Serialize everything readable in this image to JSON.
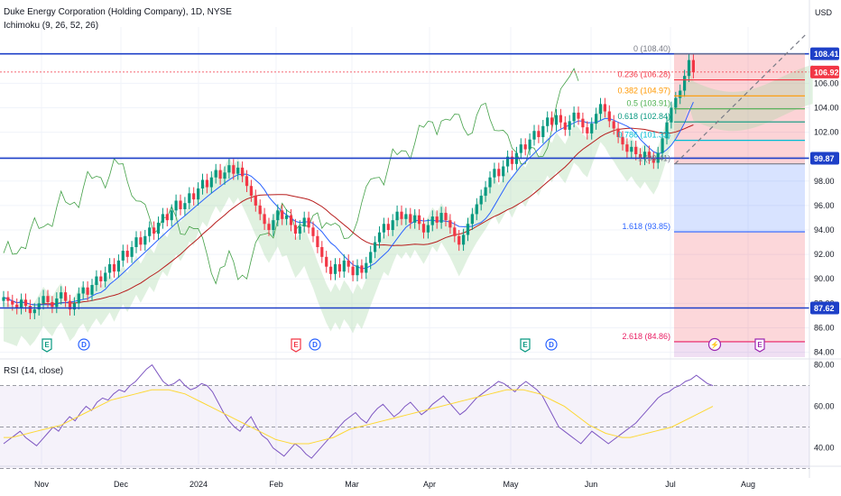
{
  "header": {
    "title": "Duke Energy Corporation (Holding Company), 1D, NYSE",
    "indicator": "Ichimoku (9, 26, 52, 26)",
    "currency": "USD"
  },
  "rsi": {
    "label": "RSI (14, close)",
    "ticks": [
      "80.00",
      "60.00",
      "40.00"
    ]
  },
  "colors": {
    "up": "#089981",
    "down": "#f23645",
    "tenkan": "#2962ff",
    "kijun": "#b71c1c",
    "lagging": "#43a047",
    "cloud_up": "#a5d6a7",
    "cloud_down": "#ef9a9a",
    "rsi": "#7e57c2",
    "rsi_ma": "#fdd835",
    "line_blue": "#1e40c8"
  },
  "chart_data": {
    "type": "candlestick",
    "price_axis": {
      "ylim": [
        83.6,
        110.6
      ],
      "ticks": [
        "106.00",
        "104.00",
        "102.00",
        "100.00",
        "98.00",
        "96.00",
        "94.00",
        "92.00",
        "90.00",
        "88.00",
        "86.00",
        "84.00"
      ],
      "labels": [
        {
          "value": 108.41,
          "text": "108.41",
          "color": "#1e40c8"
        },
        {
          "value": 106.92,
          "text": "106.92",
          "color": "#f23645"
        },
        {
          "value": 99.87,
          "text": "99.87",
          "color": "#1e40c8"
        },
        {
          "value": 87.62,
          "text": "87.62",
          "color": "#1e40c8"
        }
      ]
    },
    "time_axis": [
      "Nov",
      "Dec",
      "2024",
      "Feb",
      "Mar",
      "Apr",
      "May",
      "Jun",
      "Jul",
      "Aug"
    ],
    "horizontal_lines": [
      108.41,
      99.87,
      87.62
    ],
    "last_price": 106.92,
    "fibonacci": [
      {
        "ratio": "0",
        "value": "108.40",
        "label": "0 (108.40)",
        "price": 108.4,
        "color": "#787b86"
      },
      {
        "ratio": "0.236",
        "value": "106.28",
        "label": "0.236 (106.28)",
        "price": 106.28,
        "color": "#f23645"
      },
      {
        "ratio": "0.382",
        "value": "104.97",
        "label": "0.382 (104.97)",
        "price": 104.97,
        "color": "#ff9800"
      },
      {
        "ratio": "0.5",
        "value": "103.91",
        "label": "0.5 (103.91)",
        "price": 103.91,
        "color": "#4caf50"
      },
      {
        "ratio": "0.618",
        "value": "102.84",
        "label": "0.618 (102.84)",
        "price": 102.84,
        "color": "#089981"
      },
      {
        "ratio": "0.786",
        "value": "101.33",
        "label": "0.786 (101.33)",
        "price": 101.33,
        "color": "#00bcd4"
      },
      {
        "ratio": "1",
        "value": "99.41",
        "label": "1 (99.41)",
        "price": 99.41,
        "color": "#787b86"
      },
      {
        "ratio": "1.618",
        "value": "93.85",
        "label": "1.618 (93.85)",
        "price": 93.85,
        "color": "#2962ff"
      },
      {
        "ratio": "2.618",
        "value": "84.86",
        "label": "2.618 (84.86)",
        "price": 84.86,
        "color": "#e91e63"
      }
    ],
    "events": [
      {
        "type": "E",
        "time": "Nov",
        "color": "#089981"
      },
      {
        "type": "D",
        "time": "Nov",
        "color": "#2962ff"
      },
      {
        "type": "E",
        "time": "Feb",
        "color": "#f23645"
      },
      {
        "type": "D",
        "time": "Feb",
        "color": "#2962ff"
      },
      {
        "type": "E",
        "time": "May",
        "color": "#089981"
      },
      {
        "type": "D",
        "time": "May",
        "color": "#2962ff"
      },
      {
        "type": "⚡",
        "time": "Jul",
        "color": "#9c27b0"
      },
      {
        "type": "E",
        "time": "Jul",
        "color": "#9c27b0"
      }
    ],
    "candles_close": [
      88.5,
      88.2,
      87.9,
      87.6,
      88.3,
      87.8,
      87.2,
      87.5,
      88.0,
      88.6,
      88.1,
      87.7,
      88.4,
      88.9,
      88.2,
      87.5,
      88.0,
      88.8,
      89.3,
      88.7,
      89.5,
      90.2,
      89.8,
      90.5,
      91.2,
      90.6,
      91.5,
      92.3,
      91.8,
      92.6,
      93.4,
      92.8,
      93.5,
      94.2,
      93.7,
      94.6,
      95.3,
      94.8,
      95.6,
      96.4,
      95.7,
      96.2,
      97.0,
      96.5,
      97.4,
      98.1,
      97.5,
      98.3,
      98.9,
      98.2,
      98.7,
      99.3,
      98.6,
      99.1,
      98.4,
      97.6,
      96.8,
      96.0,
      95.3,
      94.5,
      94.0,
      94.8,
      95.6,
      94.9,
      95.2,
      94.4,
      93.7,
      94.3,
      95.0,
      94.2,
      93.5,
      92.6,
      91.8,
      91.0,
      90.4,
      91.2,
      90.6,
      91.5,
      91.0,
      90.3,
      91.1,
      90.5,
      91.3,
      92.2,
      93.0,
      93.8,
      94.5,
      94.0,
      94.8,
      95.5,
      94.9,
      95.3,
      94.6,
      95.2,
      94.5,
      93.8,
      94.4,
      95.1,
      94.6,
      95.4,
      94.8,
      94.2,
      93.5,
      92.8,
      93.6,
      94.5,
      95.3,
      96.1,
      96.8,
      97.5,
      98.3,
      99.0,
      98.4,
      99.2,
      100.0,
      99.4,
      100.3,
      101.0,
      100.6,
      101.4,
      102.1,
      101.6,
      102.5,
      103.2,
      102.6,
      103.4,
      102.8,
      102.2,
      102.9,
      103.6,
      103.1,
      102.4,
      101.9,
      102.7,
      103.5,
      104.3,
      103.7,
      102.9,
      102.3,
      101.6,
      101.0,
      100.4,
      100.8,
      100.2,
      99.8,
      100.4,
      99.9,
      99.5,
      100.3,
      101.5,
      102.8,
      104.0,
      104.8,
      105.4,
      106.6,
      107.9,
      106.9
    ],
    "rsi_values": [
      42,
      44,
      46,
      48,
      45,
      43,
      41,
      44,
      47,
      50,
      48,
      52,
      55,
      53,
      57,
      60,
      58,
      62,
      64,
      63,
      66,
      68,
      67,
      70,
      72,
      75,
      78,
      80,
      76,
      72,
      70,
      71,
      73,
      70,
      68,
      69,
      71,
      70,
      67,
      62,
      57,
      53,
      50,
      48,
      52,
      55,
      50,
      46,
      44,
      40,
      38,
      36,
      39,
      42,
      40,
      37,
      35,
      38,
      41,
      44,
      47,
      50,
      53,
      55,
      57,
      54,
      52,
      56,
      59,
      61,
      58,
      55,
      57,
      60,
      62,
      59,
      56,
      58,
      61,
      63,
      65,
      62,
      59,
      56,
      58,
      61,
      64,
      66,
      68,
      70,
      72,
      71,
      69,
      67,
      70,
      72,
      70,
      68,
      65,
      60,
      55,
      50,
      48,
      46,
      44,
      42,
      45,
      48,
      46,
      44,
      42,
      44,
      46,
      48,
      50,
      52,
      55,
      58,
      61,
      64,
      66,
      67,
      69,
      70,
      72,
      73,
      75,
      73,
      71,
      70
    ],
    "rsi_ma_values": [
      45,
      45,
      46,
      47,
      48,
      49,
      50,
      51,
      53,
      55,
      57,
      59,
      61,
      63,
      64,
      65,
      66,
      67,
      68,
      68,
      68,
      67,
      66,
      64,
      62,
      60,
      58,
      56,
      54,
      52,
      50,
      48,
      46,
      44,
      43,
      42,
      42,
      42,
      43,
      44,
      45,
      47,
      49,
      50,
      51,
      52,
      53,
      54,
      55,
      56,
      57,
      58,
      59,
      60,
      61,
      62,
      63,
      64,
      65,
      66,
      67,
      68,
      68,
      68,
      67,
      66,
      64,
      62,
      60,
      57,
      54,
      51,
      49,
      47,
      46,
      45,
      45,
      46,
      47,
      48,
      49,
      50,
      52,
      54,
      56,
      58,
      60
    ]
  }
}
